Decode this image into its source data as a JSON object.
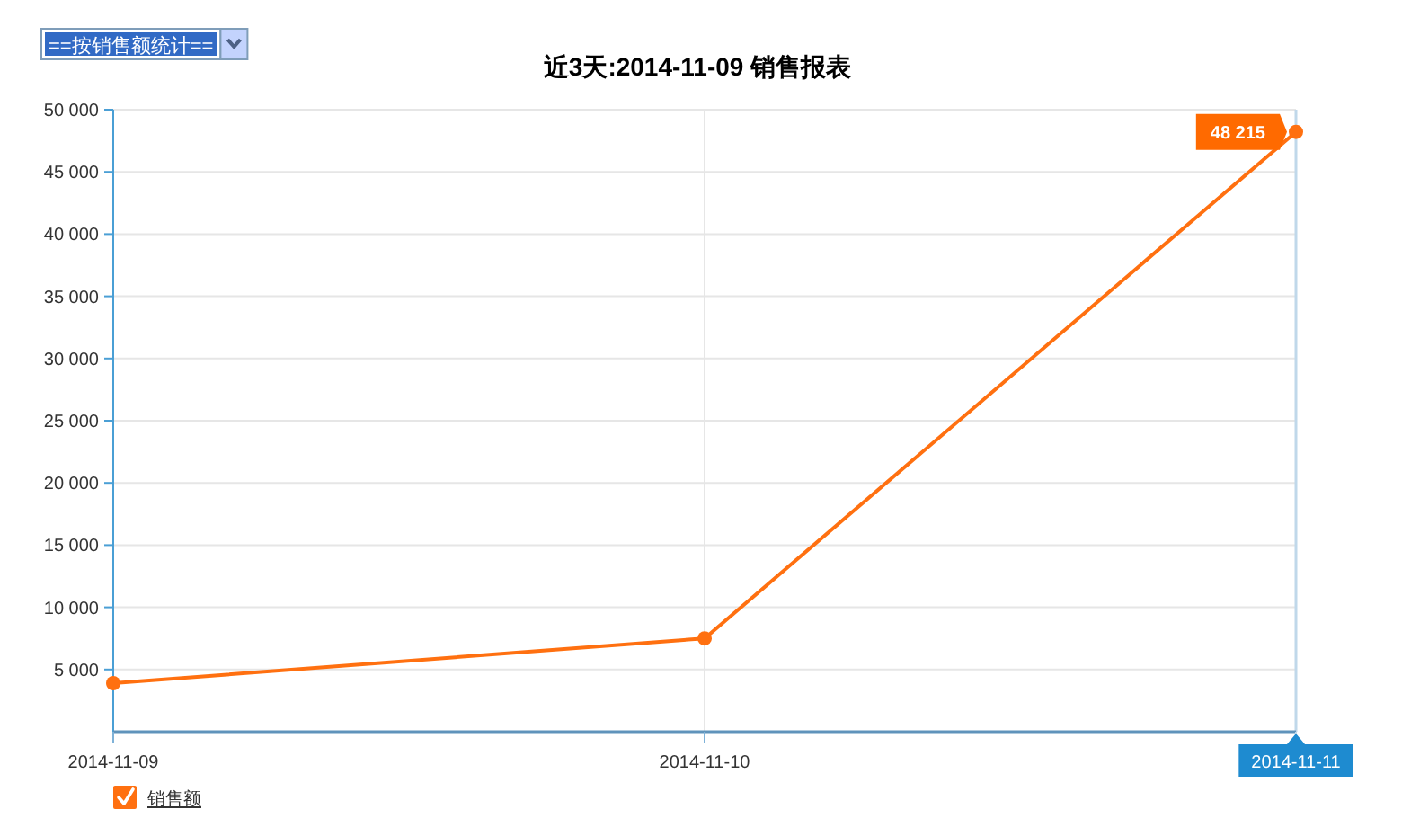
{
  "chart_data": {
    "type": "line",
    "title": "近3天:2014-11-09 销售报表",
    "annotations": [
      "==按销售额统计=="
    ],
    "categories": [
      "2014-11-09",
      "2014-11-10",
      "2014-11-11"
    ],
    "series": [
      {
        "name": "销售额",
        "color": "#ff7010",
        "values": [
          3900,
          7500,
          48215
        ],
        "value_labels": [
          null,
          null,
          "48 215"
        ]
      }
    ],
    "ylim": [
      0,
      50000
    ],
    "yticks": [
      {
        "value": 5000,
        "label": "5 000"
      },
      {
        "value": 10000,
        "label": "10 000"
      },
      {
        "value": 15000,
        "label": "15 000"
      },
      {
        "value": 20000,
        "label": "20 000"
      },
      {
        "value": 25000,
        "label": "25 000"
      },
      {
        "value": 30000,
        "label": "30 000"
      },
      {
        "value": 35000,
        "label": "35 000"
      },
      {
        "value": 40000,
        "label": "40 000"
      },
      {
        "value": 45000,
        "label": "45 000"
      },
      {
        "value": 50000,
        "label": "50 000"
      }
    ],
    "grid": true,
    "legend": "bottom left",
    "marker": "circle",
    "line_style": "solid"
  }
}
